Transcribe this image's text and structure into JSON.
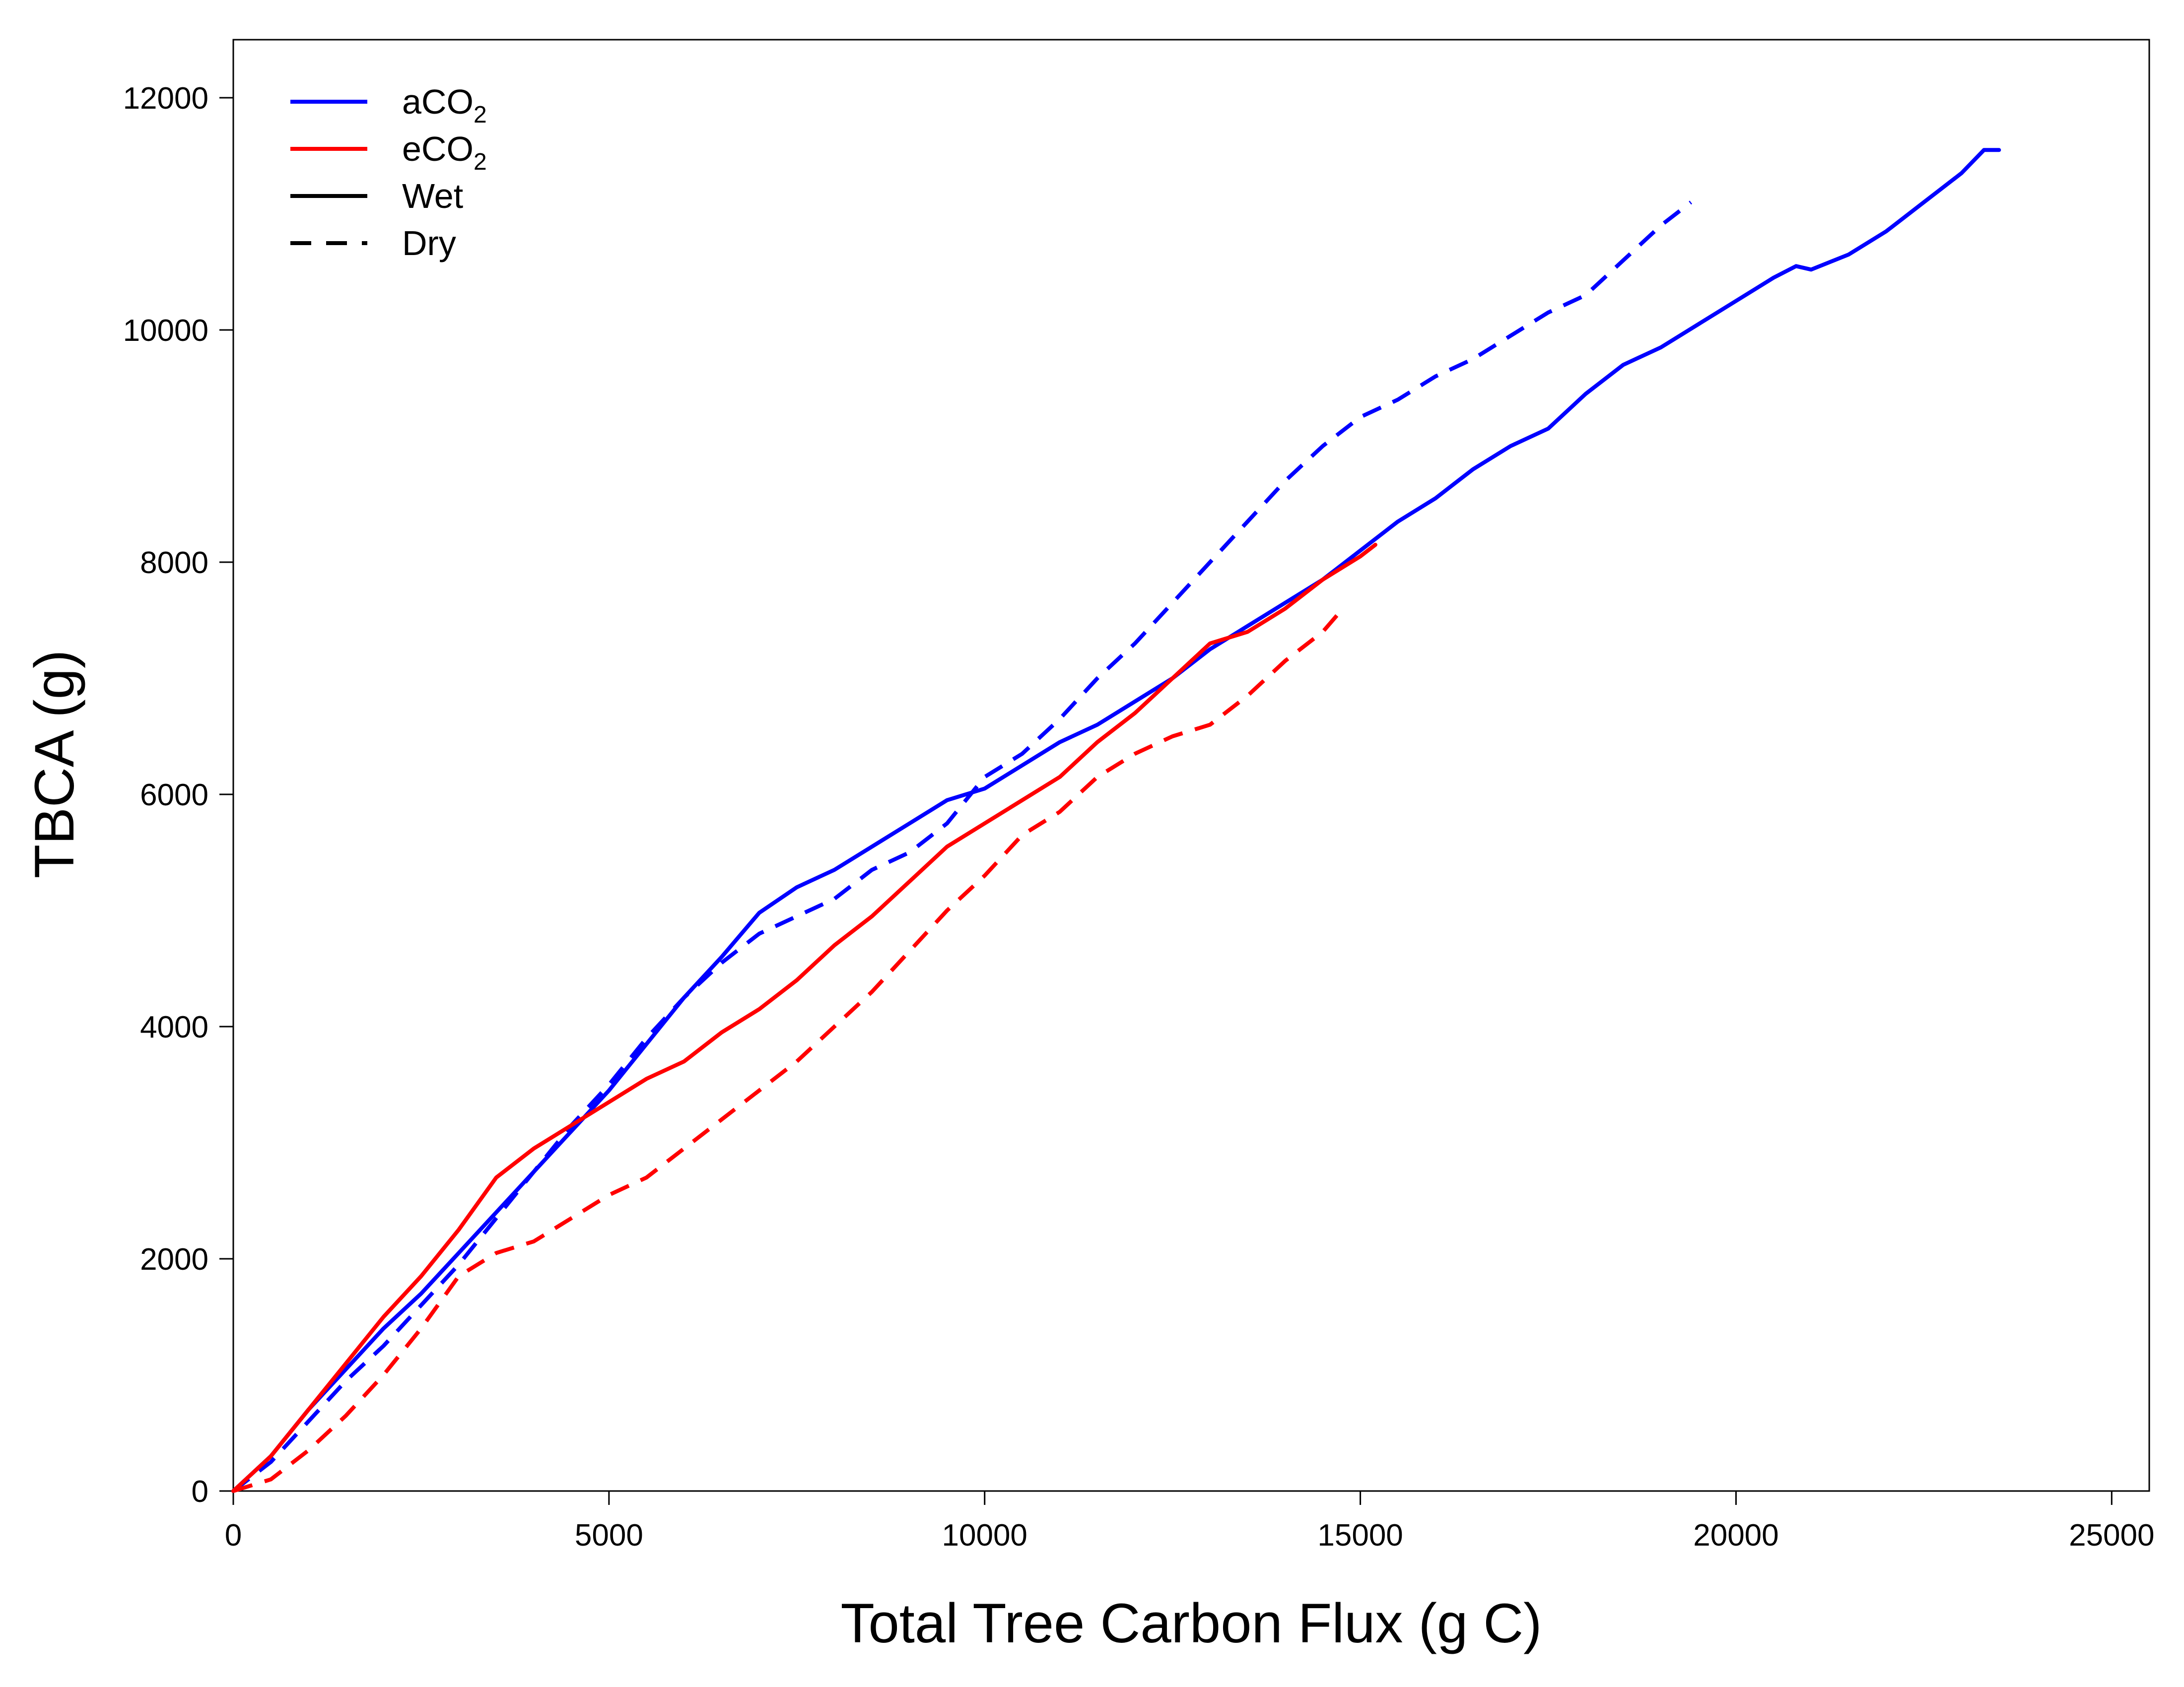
{
  "chart_data": {
    "type": "line",
    "xlabel": "Total Tree Carbon Flux  (g C)",
    "ylabel": "TBCA  (g)",
    "xlim": [
      0,
      25500
    ],
    "ylim": [
      0,
      12500
    ],
    "x_ticks": [
      0,
      5000,
      10000,
      15000,
      20000,
      25000
    ],
    "y_ticks": [
      0,
      2000,
      4000,
      6000,
      8000,
      10000,
      12000
    ],
    "grid": false,
    "legend_position": "top-left",
    "legend": [
      {
        "label": "aCO",
        "sub": "2",
        "color": "#0000ff",
        "dash": "solid"
      },
      {
        "label": "eCO",
        "sub": "2",
        "color": "#ff0000",
        "dash": "solid"
      },
      {
        "label": "Wet",
        "sub": "",
        "color": "#000000",
        "dash": "solid"
      },
      {
        "label": "Dry",
        "sub": "",
        "color": "#000000",
        "dash": "dashed"
      }
    ],
    "series": [
      {
        "color": "#0000ff",
        "dash": "solid",
        "points": [
          [
            0,
            0
          ],
          [
            500,
            300
          ],
          [
            1000,
            700
          ],
          [
            1500,
            1050
          ],
          [
            2000,
            1400
          ],
          [
            2500,
            1700
          ],
          [
            3000,
            2050
          ],
          [
            3500,
            2400
          ],
          [
            4000,
            2750
          ],
          [
            4500,
            3100
          ],
          [
            5000,
            3450
          ],
          [
            5500,
            3850
          ],
          [
            6000,
            4250
          ],
          [
            6500,
            4600
          ],
          [
            7000,
            4980
          ],
          [
            7500,
            5200
          ],
          [
            8000,
            5350
          ],
          [
            8500,
            5550
          ],
          [
            9000,
            5750
          ],
          [
            9500,
            5950
          ],
          [
            10000,
            6050
          ],
          [
            10500,
            6250
          ],
          [
            11000,
            6450
          ],
          [
            11500,
            6600
          ],
          [
            12000,
            6800
          ],
          [
            12500,
            7000
          ],
          [
            13000,
            7250
          ],
          [
            13500,
            7450
          ],
          [
            14000,
            7650
          ],
          [
            14500,
            7850
          ],
          [
            15000,
            8100
          ],
          [
            15500,
            8350
          ],
          [
            16000,
            8550
          ],
          [
            16500,
            8800
          ],
          [
            17000,
            9000
          ],
          [
            17500,
            9150
          ],
          [
            18000,
            9450
          ],
          [
            18500,
            9700
          ],
          [
            19000,
            9850
          ],
          [
            19500,
            10050
          ],
          [
            20000,
            10250
          ],
          [
            20500,
            10450
          ],
          [
            20800,
            10550
          ],
          [
            21000,
            10520
          ],
          [
            21500,
            10650
          ],
          [
            22000,
            10850
          ],
          [
            22500,
            11100
          ],
          [
            23000,
            11350
          ],
          [
            23300,
            11550
          ],
          [
            23500,
            11550
          ]
        ]
      },
      {
        "color": "#0000ff",
        "dash": "dashed",
        "points": [
          [
            0,
            0
          ],
          [
            500,
            250
          ],
          [
            1000,
            600
          ],
          [
            1500,
            950
          ],
          [
            2000,
            1250
          ],
          [
            2500,
            1600
          ],
          [
            3000,
            1950
          ],
          [
            3500,
            2350
          ],
          [
            4000,
            2750
          ],
          [
            4500,
            3150
          ],
          [
            5000,
            3500
          ],
          [
            5500,
            3900
          ],
          [
            6000,
            4250
          ],
          [
            6500,
            4550
          ],
          [
            7000,
            4800
          ],
          [
            7500,
            4950
          ],
          [
            8000,
            5100
          ],
          [
            8500,
            5350
          ],
          [
            9000,
            5500
          ],
          [
            9500,
            5750
          ],
          [
            10000,
            6150
          ],
          [
            10500,
            6350
          ],
          [
            11000,
            6650
          ],
          [
            11500,
            7000
          ],
          [
            12000,
            7300
          ],
          [
            12500,
            7650
          ],
          [
            13000,
            8000
          ],
          [
            13500,
            8350
          ],
          [
            14000,
            8700
          ],
          [
            14500,
            9000
          ],
          [
            15000,
            9250
          ],
          [
            15500,
            9400
          ],
          [
            16000,
            9600
          ],
          [
            16500,
            9750
          ],
          [
            17000,
            9950
          ],
          [
            17500,
            10150
          ],
          [
            18000,
            10300
          ],
          [
            18500,
            10600
          ],
          [
            19000,
            10900
          ],
          [
            19400,
            11100
          ]
        ]
      },
      {
        "color": "#ff0000",
        "dash": "solid",
        "points": [
          [
            0,
            0
          ],
          [
            500,
            300
          ],
          [
            1000,
            700
          ],
          [
            1500,
            1100
          ],
          [
            2000,
            1500
          ],
          [
            2500,
            1850
          ],
          [
            3000,
            2250
          ],
          [
            3500,
            2700
          ],
          [
            4000,
            2950
          ],
          [
            4500,
            3150
          ],
          [
            5000,
            3350
          ],
          [
            5500,
            3550
          ],
          [
            6000,
            3700
          ],
          [
            6500,
            3950
          ],
          [
            7000,
            4150
          ],
          [
            7500,
            4400
          ],
          [
            8000,
            4700
          ],
          [
            8500,
            4950
          ],
          [
            9000,
            5250
          ],
          [
            9500,
            5550
          ],
          [
            10000,
            5750
          ],
          [
            10500,
            5950
          ],
          [
            11000,
            6150
          ],
          [
            11500,
            6450
          ],
          [
            12000,
            6700
          ],
          [
            12500,
            7000
          ],
          [
            13000,
            7300
          ],
          [
            13500,
            7400
          ],
          [
            14000,
            7600
          ],
          [
            14500,
            7850
          ],
          [
            15000,
            8050
          ],
          [
            15200,
            8150
          ]
        ]
      },
      {
        "color": "#ff0000",
        "dash": "dashed",
        "points": [
          [
            0,
            0
          ],
          [
            500,
            100
          ],
          [
            1000,
            350
          ],
          [
            1500,
            650
          ],
          [
            2000,
            1000
          ],
          [
            2500,
            1400
          ],
          [
            3000,
            1850
          ],
          [
            3500,
            2050
          ],
          [
            4000,
            2150
          ],
          [
            4500,
            2350
          ],
          [
            5000,
            2550
          ],
          [
            5500,
            2700
          ],
          [
            6000,
            2950
          ],
          [
            6500,
            3200
          ],
          [
            7000,
            3450
          ],
          [
            7500,
            3700
          ],
          [
            8000,
            4000
          ],
          [
            8500,
            4300
          ],
          [
            9000,
            4650
          ],
          [
            9500,
            5000
          ],
          [
            10000,
            5300
          ],
          [
            10500,
            5650
          ],
          [
            11000,
            5850
          ],
          [
            11500,
            6150
          ],
          [
            12000,
            6350
          ],
          [
            12500,
            6500
          ],
          [
            13000,
            6600
          ],
          [
            13500,
            6850
          ],
          [
            14000,
            7150
          ],
          [
            14500,
            7400
          ],
          [
            14700,
            7550
          ]
        ]
      }
    ]
  }
}
